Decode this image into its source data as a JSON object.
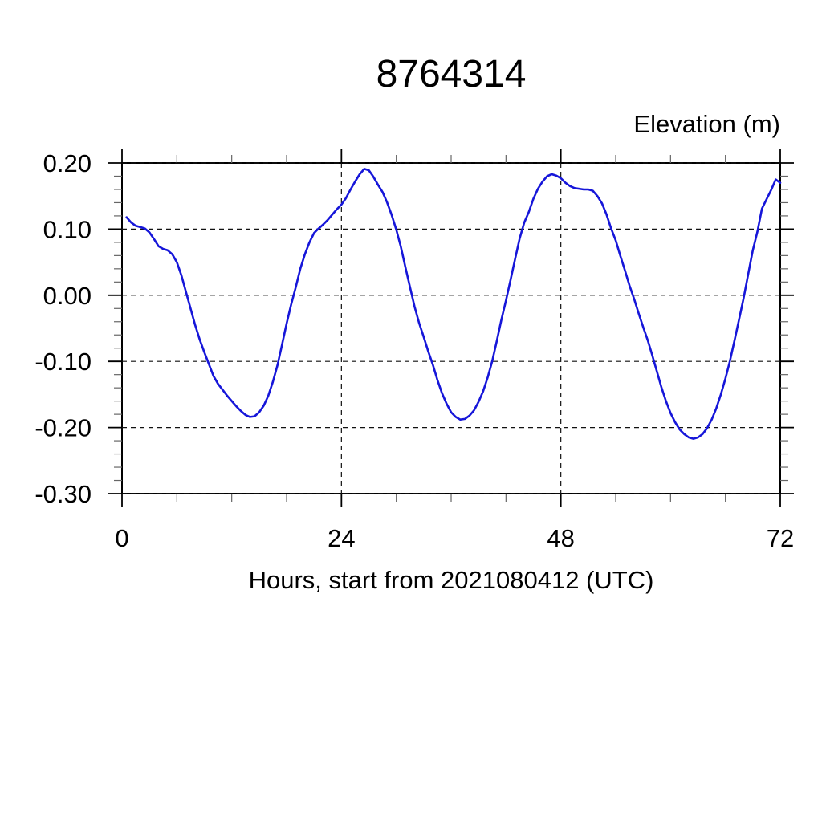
{
  "chart_data": {
    "type": "line",
    "title": "8764314",
    "ylabel": "Elevation (m)",
    "xlabel": "Hours, start from 2021080412 (UTC)",
    "xlim": [
      0,
      72
    ],
    "ylim": [
      -0.3,
      0.2
    ],
    "x_ticks": [
      {
        "v": 0,
        "label": "0"
      },
      {
        "v": 24,
        "label": "24"
      },
      {
        "v": 48,
        "label": "48"
      },
      {
        "v": 72,
        "label": "72"
      }
    ],
    "y_ticks": [
      {
        "v": 0.2,
        "label": "0.20"
      },
      {
        "v": 0.1,
        "label": "0.10"
      },
      {
        "v": 0.0,
        "label": "0.00"
      },
      {
        "v": -0.1,
        "label": "-0.10"
      },
      {
        "v": -0.2,
        "label": "-0.20"
      },
      {
        "v": -0.3,
        "label": "-0.30"
      }
    ],
    "x_minor_step": 6,
    "y_minor_step": 0.02,
    "grid": "dashed",
    "gridlines_x": [
      24,
      48
    ],
    "legend": "none",
    "line_color": "#1616d9",
    "frame_color": "#000000",
    "minor_tick_color": "#666666",
    "background": "#ffffff",
    "series": [
      {
        "name": "elevation",
        "x": [
          0.5,
          1,
          1.5,
          2,
          2.5,
          3,
          3.5,
          4,
          4.5,
          5,
          5.5,
          6,
          6.5,
          7,
          7.5,
          8,
          8.5,
          9,
          9.5,
          10,
          10.5,
          11,
          11.5,
          12,
          12.5,
          13,
          13.5,
          14,
          14.5,
          15,
          15.5,
          16,
          16.5,
          17,
          17.5,
          18,
          18.5,
          19,
          19.5,
          20,
          20.5,
          21,
          21.5,
          22,
          22.5,
          23,
          23.5,
          24,
          24.5,
          25,
          25.5,
          26,
          26.5,
          27,
          27.5,
          28,
          28.5,
          29,
          29.5,
          30,
          30.5,
          31,
          31.5,
          32,
          32.5,
          33,
          33.5,
          34,
          34.5,
          35,
          35.5,
          36,
          36.5,
          37,
          37.5,
          38,
          38.5,
          39,
          39.5,
          40,
          40.5,
          41,
          41.5,
          42,
          42.5,
          43,
          43.5,
          44,
          44.5,
          45,
          45.5,
          46,
          46.5,
          47,
          47.5,
          48,
          48.5,
          49,
          49.5,
          50,
          50.5,
          51,
          51.5,
          52,
          52.5,
          53,
          53.5,
          54,
          54.5,
          55,
          55.5,
          56,
          56.5,
          57,
          57.5,
          58,
          58.5,
          59,
          59.5,
          60,
          60.5,
          61,
          61.5,
          62,
          62.5,
          63,
          63.5,
          64,
          64.5,
          65,
          65.5,
          66,
          66.5,
          67,
          67.5,
          68,
          68.5,
          69,
          69.5,
          70,
          70.5,
          71,
          71.5,
          72
        ],
        "y": [
          0.118,
          0.11,
          0.105,
          0.103,
          0.101,
          0.095,
          0.085,
          0.074,
          0.07,
          0.068,
          0.062,
          0.05,
          0.03,
          0.005,
          -0.02,
          -0.045,
          -0.067,
          -0.086,
          -0.104,
          -0.122,
          -0.134,
          -0.143,
          -0.152,
          -0.16,
          -0.168,
          -0.175,
          -0.181,
          -0.184,
          -0.183,
          -0.177,
          -0.167,
          -0.152,
          -0.131,
          -0.106,
          -0.075,
          -0.043,
          -0.014,
          0.012,
          0.04,
          0.062,
          0.08,
          0.094,
          0.101,
          0.107,
          0.114,
          0.122,
          0.13,
          0.137,
          0.147,
          0.16,
          0.172,
          0.183,
          0.191,
          0.189,
          0.179,
          0.167,
          0.156,
          0.14,
          0.121,
          0.099,
          0.073,
          0.042,
          0.012,
          -0.017,
          -0.042,
          -0.063,
          -0.085,
          -0.105,
          -0.128,
          -0.148,
          -0.164,
          -0.177,
          -0.184,
          -0.188,
          -0.187,
          -0.182,
          -0.174,
          -0.161,
          -0.145,
          -0.124,
          -0.099,
          -0.069,
          -0.037,
          -0.008,
          0.023,
          0.055,
          0.086,
          0.11,
          0.126,
          0.146,
          0.161,
          0.172,
          0.18,
          0.183,
          0.181,
          0.177,
          0.17,
          0.165,
          0.162,
          0.161,
          0.16,
          0.16,
          0.158,
          0.15,
          0.139,
          0.122,
          0.101,
          0.083,
          0.06,
          0.038,
          0.015,
          -0.005,
          -0.027,
          -0.048,
          -0.068,
          -0.091,
          -0.115,
          -0.139,
          -0.16,
          -0.178,
          -0.192,
          -0.203,
          -0.21,
          -0.215,
          -0.217,
          -0.215,
          -0.21,
          -0.201,
          -0.188,
          -0.171,
          -0.15,
          -0.126,
          -0.099,
          -0.068,
          -0.036,
          -0.004,
          0.032,
          0.068,
          0.096,
          0.131,
          0.145,
          0.159,
          0.175,
          0.17
        ]
      }
    ]
  }
}
